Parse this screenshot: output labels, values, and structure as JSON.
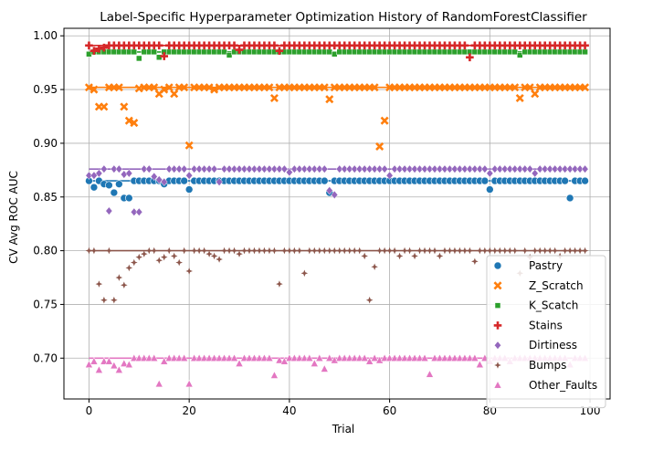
{
  "chart_data": {
    "type": "scatter",
    "title": "Label-Specific Hyperparameter Optimization History of RandomForestClassifier",
    "xlabel": "Trial",
    "ylabel": "CV Avg ROC AUC",
    "xlim": [
      -5,
      104
    ],
    "ylim": [
      0.662,
      1.007
    ],
    "xticks": [
      0,
      20,
      40,
      60,
      80,
      100
    ],
    "yticks": [
      0.7,
      0.75,
      0.8,
      0.85,
      0.9,
      0.95,
      1.0
    ],
    "xtick_labels": [
      "0",
      "20",
      "40",
      "60",
      "80",
      "100"
    ],
    "ytick_labels": [
      "0.70",
      "0.75",
      "0.80",
      "0.85",
      "0.90",
      "0.95",
      "1.00"
    ],
    "grid": true,
    "legend_position": "bottom-right",
    "series": [
      {
        "name": "Pastry",
        "color": "#1f77b4",
        "marker": "circle",
        "best": 0.865,
        "outliers": [
          [
            1,
            0.859
          ],
          [
            3,
            0.862
          ],
          [
            4,
            0.861
          ],
          [
            5,
            0.854
          ],
          [
            6,
            0.862
          ],
          [
            7,
            0.849
          ],
          [
            8,
            0.849
          ],
          [
            15,
            0.862
          ],
          [
            20,
            0.857
          ],
          [
            48,
            0.854
          ],
          [
            80,
            0.857
          ],
          [
            96,
            0.849
          ]
        ]
      },
      {
        "name": "Z_Scratch",
        "color": "#ff7f0e",
        "marker": "x",
        "best": 0.952,
        "outliers": [
          [
            1,
            0.95
          ],
          [
            2,
            0.934
          ],
          [
            3,
            0.934
          ],
          [
            7,
            0.934
          ],
          [
            8,
            0.921
          ],
          [
            9,
            0.919
          ],
          [
            10,
            0.951
          ],
          [
            14,
            0.946
          ],
          [
            15,
            0.95
          ],
          [
            17,
            0.946
          ],
          [
            20,
            0.898
          ],
          [
            25,
            0.95
          ],
          [
            37,
            0.942
          ],
          [
            48,
            0.941
          ],
          [
            58,
            0.897
          ],
          [
            59,
            0.921
          ],
          [
            86,
            0.942
          ],
          [
            89,
            0.946
          ]
        ]
      },
      {
        "name": "K_Scatch",
        "color": "#2ca02c",
        "marker": "square",
        "best": 0.985,
        "outliers": [
          [
            0,
            0.983
          ],
          [
            10,
            0.979
          ],
          [
            14,
            0.98
          ],
          [
            28,
            0.982
          ],
          [
            49,
            0.983
          ],
          [
            86,
            0.982
          ]
        ]
      },
      {
        "name": "Stains",
        "color": "#d62728",
        "marker": "plus",
        "best": 0.991,
        "outliers": [
          [
            1,
            0.986
          ],
          [
            2,
            0.988
          ],
          [
            3,
            0.989
          ],
          [
            15,
            0.981
          ],
          [
            30,
            0.987
          ],
          [
            38,
            0.986
          ],
          [
            76,
            0.98
          ]
        ]
      },
      {
        "name": "Dirtiness",
        "color": "#9467bd",
        "marker": "diamond",
        "best": 0.876,
        "outliers": [
          [
            0,
            0.87
          ],
          [
            1,
            0.87
          ],
          [
            2,
            0.872
          ],
          [
            4,
            0.837
          ],
          [
            7,
            0.871
          ],
          [
            8,
            0.872
          ],
          [
            9,
            0.836
          ],
          [
            10,
            0.836
          ],
          [
            13,
            0.869
          ],
          [
            14,
            0.866
          ],
          [
            15,
            0.864
          ],
          [
            20,
            0.87
          ],
          [
            26,
            0.864
          ],
          [
            40,
            0.873
          ],
          [
            48,
            0.856
          ],
          [
            49,
            0.852
          ],
          [
            60,
            0.87
          ],
          [
            80,
            0.872
          ],
          [
            89,
            0.872
          ]
        ]
      },
      {
        "name": "Bumps",
        "color": "#8c564b",
        "marker": "star",
        "best": 0.8,
        "outliers": [
          [
            2,
            0.769
          ],
          [
            3,
            0.754
          ],
          [
            5,
            0.754
          ],
          [
            6,
            0.775
          ],
          [
            7,
            0.768
          ],
          [
            8,
            0.784
          ],
          [
            9,
            0.789
          ],
          [
            10,
            0.794
          ],
          [
            11,
            0.797
          ],
          [
            14,
            0.791
          ],
          [
            15,
            0.794
          ],
          [
            17,
            0.795
          ],
          [
            18,
            0.789
          ],
          [
            20,
            0.781
          ],
          [
            24,
            0.797
          ],
          [
            25,
            0.795
          ],
          [
            26,
            0.792
          ],
          [
            30,
            0.797
          ],
          [
            38,
            0.769
          ],
          [
            43,
            0.779
          ],
          [
            55,
            0.795
          ],
          [
            56,
            0.754
          ],
          [
            57,
            0.785
          ],
          [
            62,
            0.795
          ],
          [
            65,
            0.795
          ],
          [
            70,
            0.795
          ],
          [
            77,
            0.79
          ],
          [
            86,
            0.779
          ],
          [
            88,
            0.794
          ],
          [
            94,
            0.795
          ]
        ]
      },
      {
        "name": "Other_Faults",
        "color": "#e377c2",
        "marker": "triangle",
        "best": 0.7,
        "outliers": [
          [
            0,
            0.694
          ],
          [
            1,
            0.697
          ],
          [
            2,
            0.689
          ],
          [
            3,
            0.697
          ],
          [
            4,
            0.697
          ],
          [
            5,
            0.693
          ],
          [
            6,
            0.689
          ],
          [
            7,
            0.695
          ],
          [
            8,
            0.694
          ],
          [
            14,
            0.676
          ],
          [
            15,
            0.697
          ],
          [
            20,
            0.676
          ],
          [
            30,
            0.695
          ],
          [
            37,
            0.684
          ],
          [
            38,
            0.698
          ],
          [
            39,
            0.697
          ],
          [
            45,
            0.695
          ],
          [
            47,
            0.69
          ],
          [
            49,
            0.698
          ],
          [
            56,
            0.697
          ],
          [
            58,
            0.698
          ],
          [
            68,
            0.685
          ],
          [
            78,
            0.694
          ],
          [
            80,
            0.697
          ],
          [
            84,
            0.697
          ],
          [
            96,
            0.694
          ]
        ]
      }
    ]
  }
}
